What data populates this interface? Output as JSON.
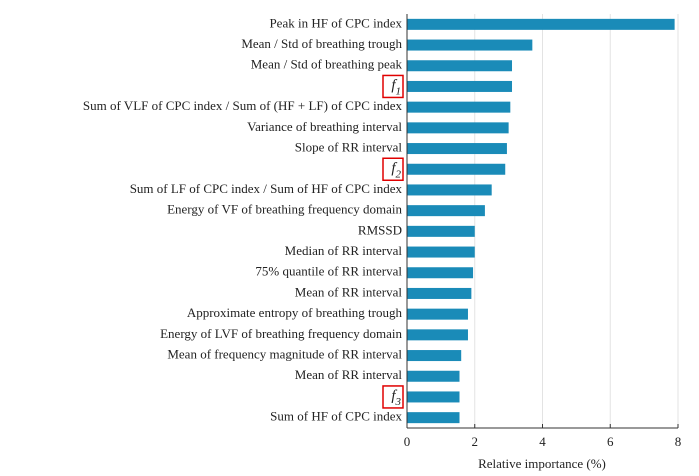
{
  "chart_data": {
    "type": "barh",
    "categories": [
      "Peak in HF of CPC index",
      "Mean / Std of breathing trough",
      "Mean / Std of breathing peak",
      "f1",
      "Sum of VLF of CPC index / Sum of (HF + LF) of CPC index",
      "Variance of breathing interval",
      "Slope of RR interval",
      "f2",
      "Sum of LF of CPC index / Sum of HF of CPC index",
      "Energy of VF of breathing frequency domain",
      "RMSSD",
      "Median of RR interval",
      "75% quantile of RR interval",
      "Mean of RR interval",
      "Approximate entropy of breathing trough",
      "Energy of LVF of breathing frequency domain",
      "Mean of frequency magnitude of RR interval",
      "Mean of RR interval",
      "f3",
      "Sum of HF of CPC index"
    ],
    "values": [
      7.9,
      3.7,
      3.1,
      3.1,
      3.05,
      3.0,
      2.95,
      2.9,
      2.5,
      2.3,
      2.0,
      2.0,
      1.95,
      1.9,
      1.8,
      1.8,
      1.6,
      1.55,
      1.55,
      1.55
    ],
    "color": "#1a8bb8",
    "xlabel": "Relative importance (%)",
    "xlim": [
      0,
      8
    ],
    "xticks": [
      0,
      2,
      4,
      6,
      8
    ],
    "grid": true
  }
}
